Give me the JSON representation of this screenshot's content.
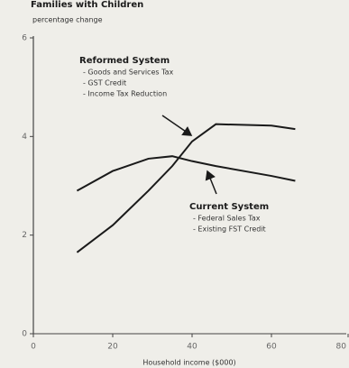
{
  "chart_data": {
    "type": "line",
    "title": "Families with Children",
    "y_label": "percentage change",
    "x_label": "Household income ($000)",
    "x": [
      11,
      20,
      29,
      35,
      40,
      46,
      60,
      66
    ],
    "series": [
      {
        "name": "Reformed System",
        "color": "#1a1a1a",
        "values": [
          1.65,
          2.2,
          2.9,
          3.4,
          3.9,
          4.25,
          4.22,
          4.15
        ]
      },
      {
        "name": "Current System",
        "color": "#1a1a1a",
        "values": [
          2.9,
          3.3,
          3.55,
          3.6,
          3.5,
          3.4,
          3.2,
          3.1
        ]
      }
    ],
    "annotations": [
      {
        "title": "Reformed System",
        "items": [
          "- Goods and Services Tax",
          "- GST Credit",
          "- Income Tax Reduction"
        ]
      },
      {
        "title": "Current System",
        "items": [
          "- Federal Sales Tax",
          "- Existing FST Credit"
        ]
      }
    ],
    "xlim": [
      0,
      80
    ],
    "ylim": [
      0,
      6
    ],
    "xticks": [
      0,
      20,
      40,
      60,
      80
    ],
    "yticks": [
      0,
      2,
      4,
      6
    ]
  }
}
